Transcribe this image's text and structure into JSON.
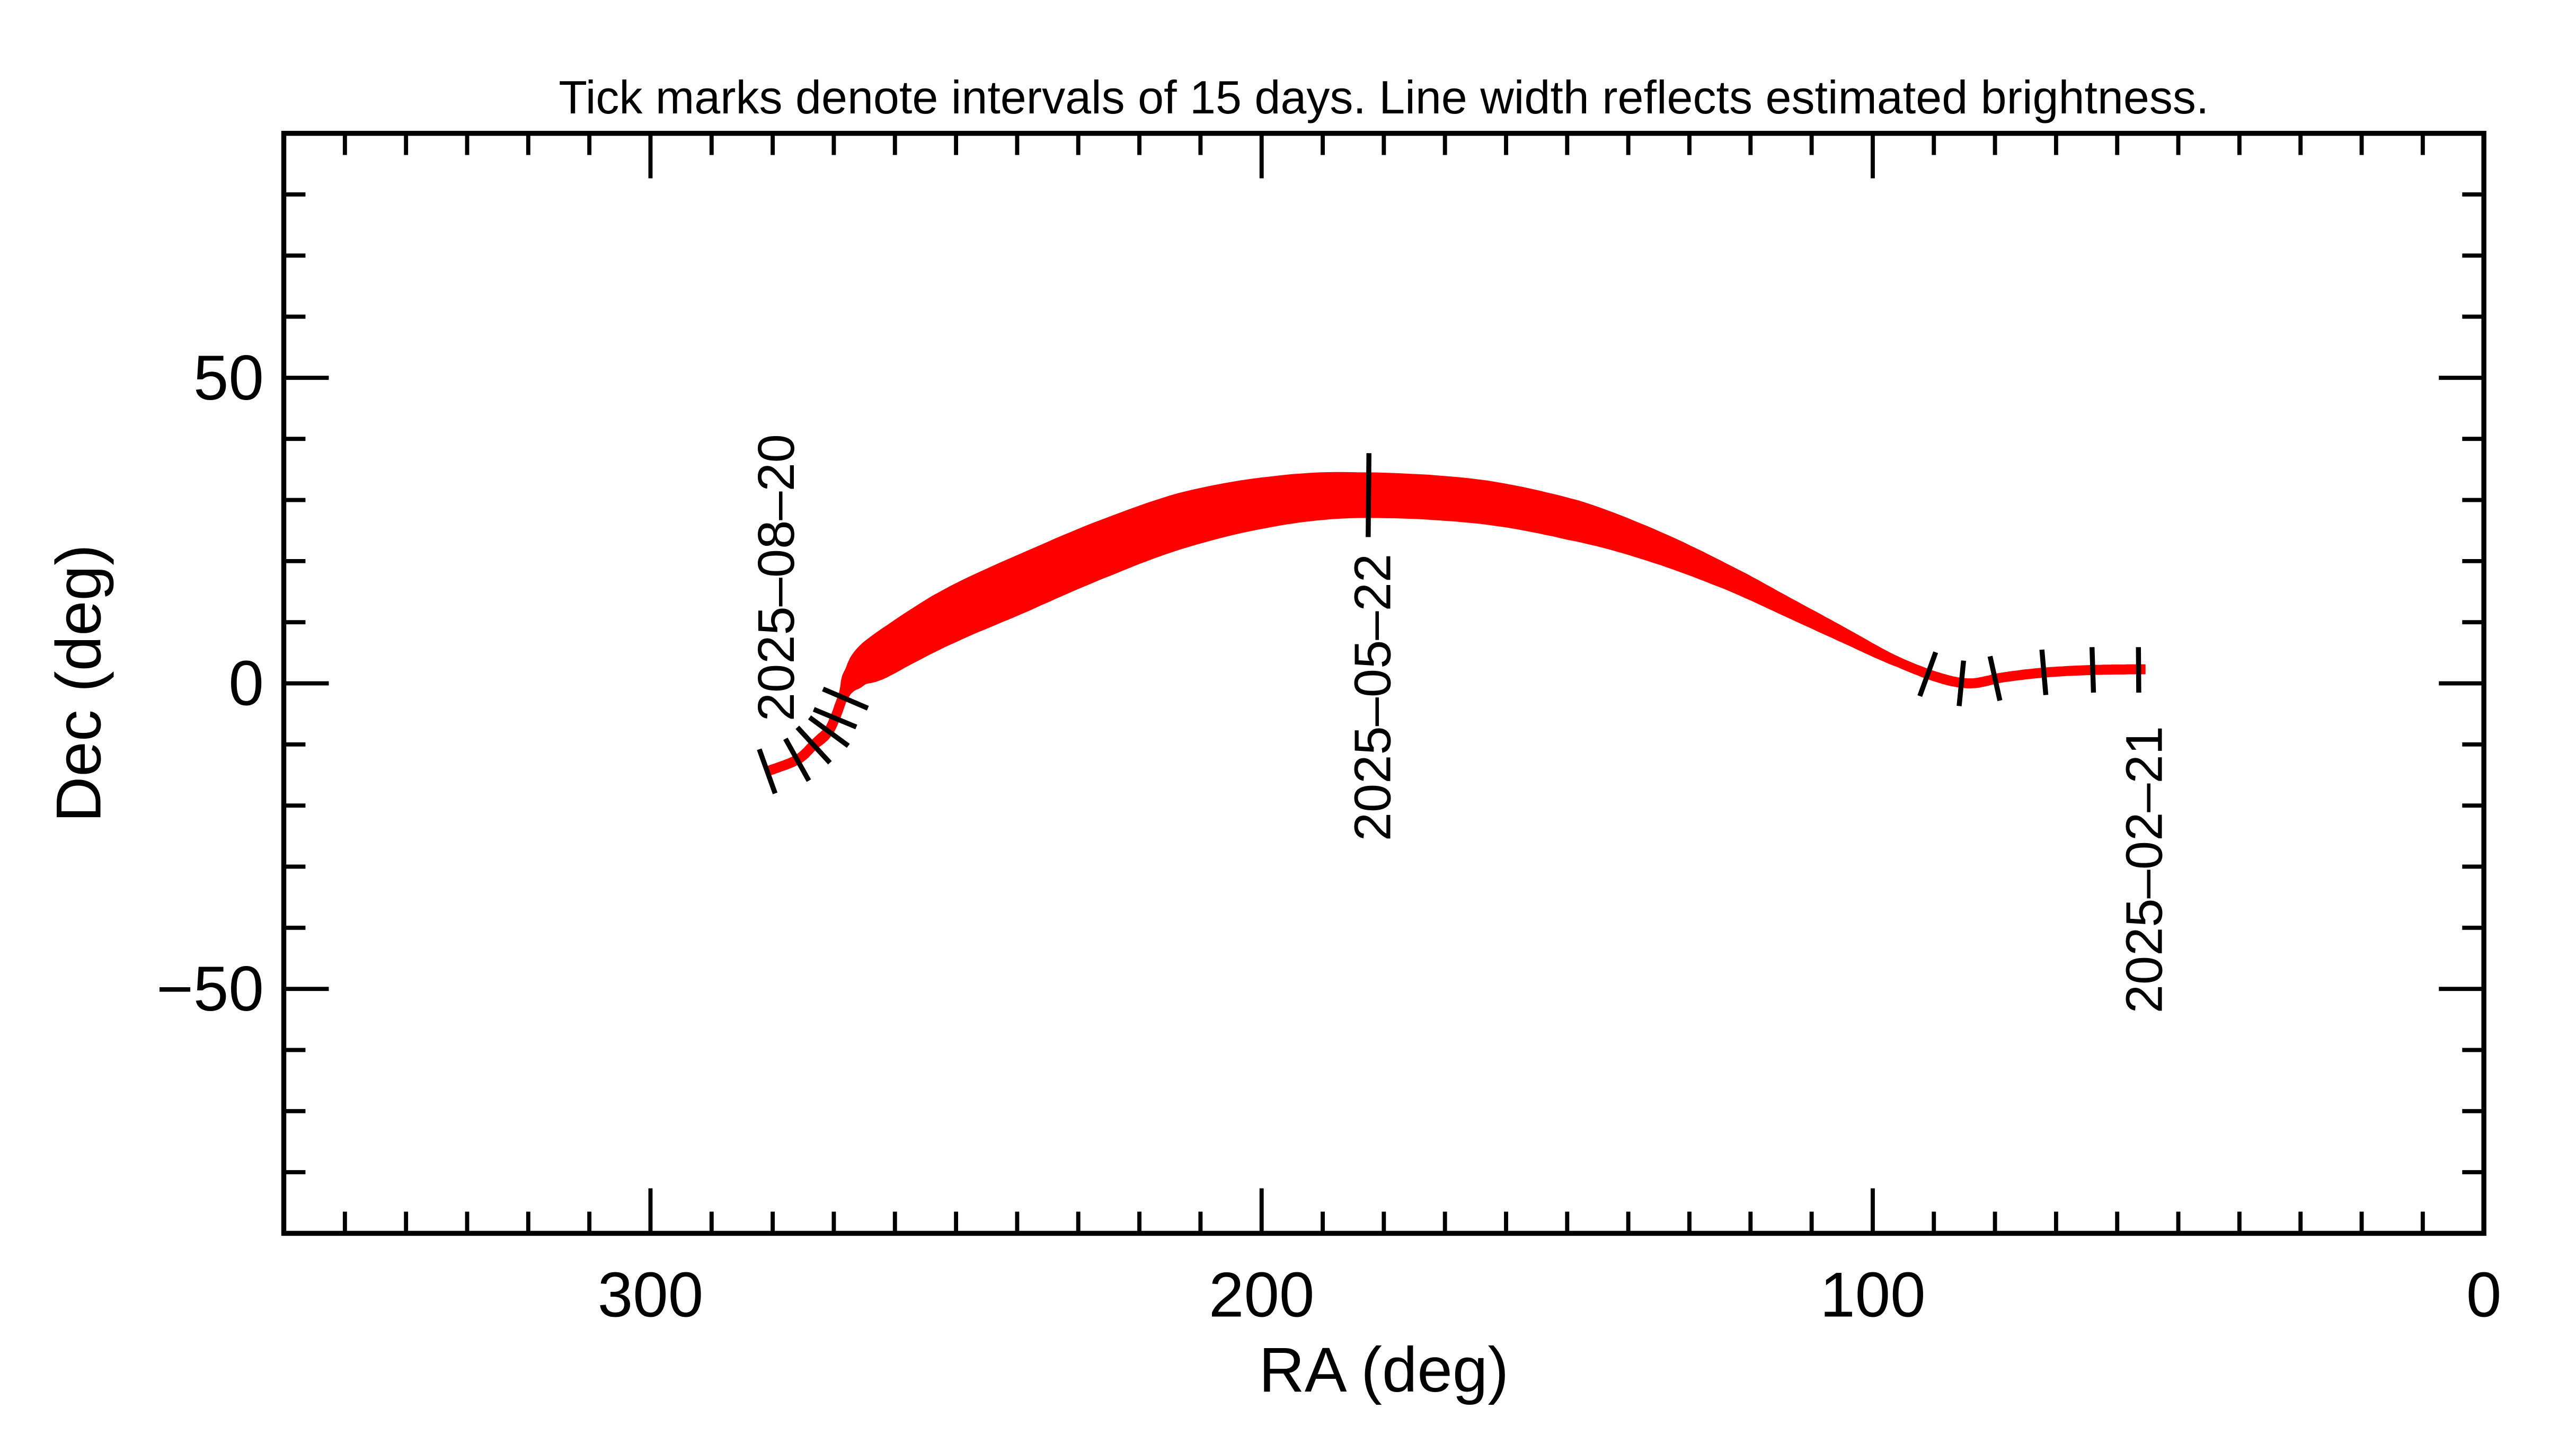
{
  "chart_data": {
    "type": "line",
    "title": "Tick marks denote intervals of 15 days.  Line width reflects estimated brightness.",
    "xlabel": "RA (deg)",
    "ylabel": "Dec (deg)",
    "xlim": [
      360,
      0
    ],
    "ylim": [
      -90,
      90
    ],
    "x_major_ticks": [
      300,
      200,
      100,
      0
    ],
    "x_tick_labels": [
      "300",
      "200",
      "100",
      "0"
    ],
    "x_minor_step": 10,
    "y_major_ticks": [
      50,
      0,
      -50
    ],
    "y_tick_labels": [
      "50",
      "0",
      "−50"
    ],
    "y_minor_step": 10,
    "grid": false,
    "line_color": "#ff0000",
    "tick_color": "#000000",
    "track_columns": [
      "ra_deg",
      "dec_deg",
      "relative_brightness_width_deg"
    ],
    "track": [
      [
        55.5,
        2.3,
        0.9
      ],
      [
        63.5,
        2.2,
        0.9
      ],
      [
        71.5,
        1.8,
        0.9
      ],
      [
        78.5,
        1.0,
        0.9
      ],
      [
        84,
        0.0,
        0.9
      ],
      [
        89.4,
        1.0,
        1.0
      ],
      [
        97,
        4.0,
        1.6
      ],
      [
        104.6,
        7.8,
        2.4
      ],
      [
        114,
        12.5,
        3.2
      ],
      [
        123.7,
        17.3,
        4.0
      ],
      [
        136,
        22.5,
        5.3
      ],
      [
        149,
        26.7,
        6.6
      ],
      [
        165,
        29.8,
        7.0
      ],
      [
        184,
        30.8,
        7.2
      ],
      [
        198,
        29.8,
        8.0
      ],
      [
        212.5,
        26.8,
        9.0
      ],
      [
        226,
        22.0,
        9.5
      ],
      [
        240,
        16.0,
        9.7
      ],
      [
        252,
        10.5,
        9.3
      ],
      [
        263.3,
        3.8,
        8.0
      ],
      [
        267,
        0.5,
        5.5
      ],
      [
        268.6,
        -2.5,
        3.5
      ],
      [
        269.8,
        -5.7,
        2.6
      ],
      [
        271,
        -8.0,
        2.2
      ],
      [
        273.3,
        -10.1,
        1.8
      ],
      [
        276,
        -12.5,
        1.5
      ],
      [
        280.9,
        -14.4,
        1.2
      ]
    ],
    "interval_ticks": [
      {
        "ra": 56.5,
        "dec": 2.2,
        "label": "2025-02-21"
      },
      {
        "ra": 64,
        "dec": 2.2
      },
      {
        "ra": 72,
        "dec": 1.8
      },
      {
        "ra": 80,
        "dec": 0.8
      },
      {
        "ra": 85.5,
        "dec": 0.0
      },
      {
        "ra": 91,
        "dec": 1.5
      },
      {
        "ra": 182.5,
        "dec": 30.8,
        "label": "2025-05-22"
      },
      {
        "ra": 268.1,
        "dec": -2.5
      },
      {
        "ra": 269.8,
        "dec": -5.7
      },
      {
        "ra": 270.8,
        "dec": -7.9
      },
      {
        "ra": 273.3,
        "dec": -10.1
      },
      {
        "ra": 276.0,
        "dec": -12.5
      },
      {
        "ra": 280.9,
        "dec": -14.4,
        "label": "2025-08-20"
      }
    ]
  }
}
